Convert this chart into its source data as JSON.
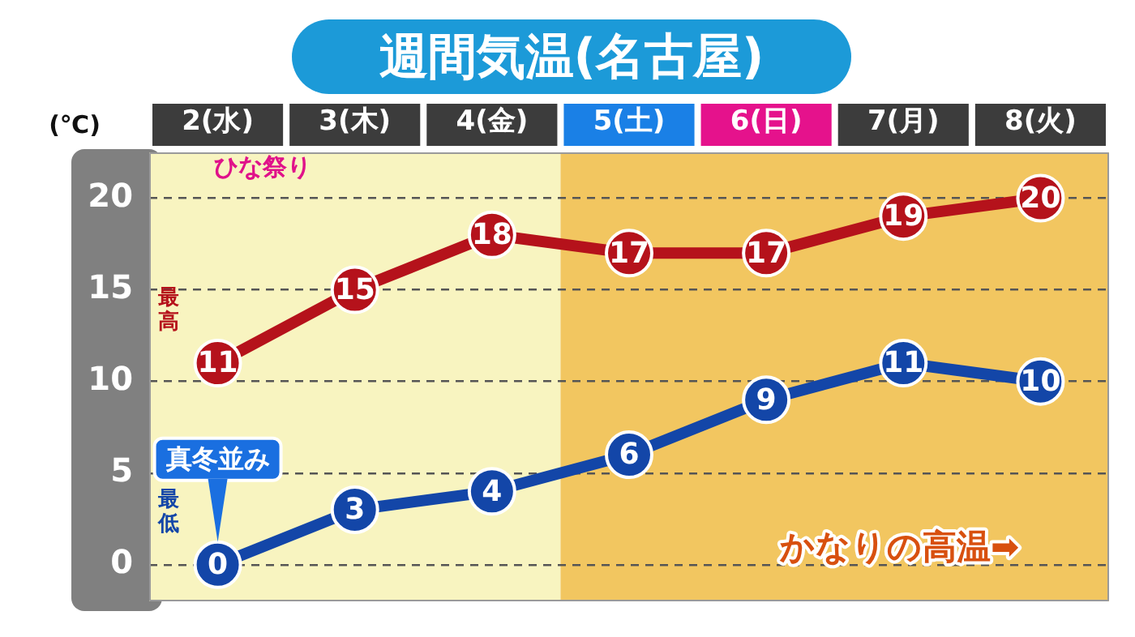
{
  "chart_data": {
    "type": "line",
    "title": "週間気温(名古屋)",
    "ylabel": "(℃)",
    "categories": [
      "2(水)",
      "3(木)",
      "4(金)",
      "5(土)",
      "6(日)",
      "7(月)",
      "8(火)"
    ],
    "series": [
      {
        "name": "最高",
        "color": "#b5121b",
        "values": [
          11,
          15,
          18,
          17,
          17,
          19,
          20
        ]
      },
      {
        "name": "最低",
        "color": "#1346a8",
        "values": [
          0,
          3,
          4,
          6,
          9,
          11,
          10
        ]
      }
    ],
    "ylim": [
      -2,
      22.5
    ],
    "yticks": [
      0,
      5,
      10,
      15,
      20
    ],
    "grid": "y",
    "legend": false,
    "marker": "circle",
    "line_style": "solid",
    "data_labels": true,
    "bands": [
      {
        "axis": "x",
        "from": "2(水)",
        "to": "4(金)",
        "color": "#f8f4c0",
        "label": null
      },
      {
        "axis": "x",
        "from": "5(土)",
        "to": "8(火)",
        "color": "#f2c660",
        "label": "かなりの高温➡"
      }
    ],
    "annotations": [
      "ひな祭り",
      "真冬並み"
    ]
  }
}
